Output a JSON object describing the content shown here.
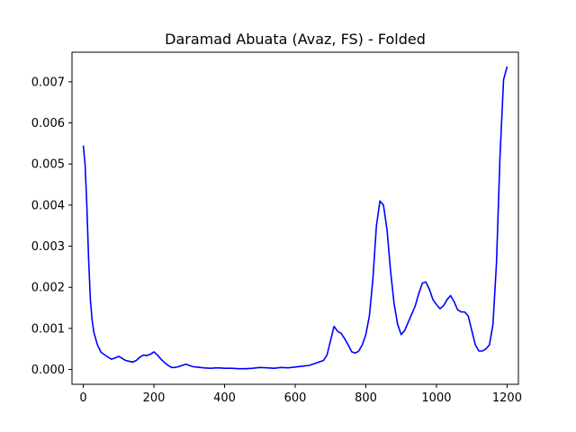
{
  "chart_data": {
    "type": "line",
    "title": "Daramad Abuata (Avaz, FS) - Folded",
    "xlabel": "",
    "ylabel": "",
    "xlim": [
      -32,
      1232
    ],
    "ylim": [
      -0.00036,
      0.00772
    ],
    "xticks": [
      0,
      200,
      400,
      600,
      800,
      1000,
      1200
    ],
    "yticks": [
      0.0,
      0.001,
      0.002,
      0.003,
      0.004,
      0.005,
      0.006,
      0.007
    ],
    "xtick_labels": [
      "0",
      "200",
      "400",
      "600",
      "800",
      "1000",
      "1200"
    ],
    "ytick_labels": [
      "0.000",
      "0.001",
      "0.002",
      "0.003",
      "0.004",
      "0.005",
      "0.006",
      "0.007"
    ],
    "grid": false,
    "series": [
      {
        "color": "#0000ff",
        "x": [
          0,
          5,
          10,
          15,
          20,
          25,
          30,
          40,
          50,
          60,
          70,
          80,
          90,
          100,
          110,
          120,
          130,
          140,
          150,
          160,
          170,
          180,
          190,
          200,
          210,
          220,
          230,
          240,
          250,
          260,
          270,
          280,
          290,
          300,
          310,
          320,
          340,
          360,
          380,
          400,
          420,
          440,
          460,
          480,
          500,
          520,
          540,
          560,
          580,
          600,
          620,
          640,
          660,
          680,
          690,
          700,
          710,
          720,
          730,
          740,
          750,
          760,
          770,
          780,
          790,
          800,
          810,
          820,
          830,
          840,
          850,
          860,
          870,
          880,
          890,
          900,
          910,
          920,
          930,
          940,
          950,
          960,
          970,
          980,
          990,
          1000,
          1010,
          1020,
          1030,
          1040,
          1050,
          1060,
          1070,
          1080,
          1090,
          1100,
          1110,
          1120,
          1130,
          1140,
          1150,
          1160,
          1170,
          1180,
          1190,
          1200
        ],
        "y": [
          0.00545,
          0.005,
          0.004,
          0.0027,
          0.0017,
          0.0012,
          0.0009,
          0.0006,
          0.00042,
          0.00036,
          0.0003,
          0.00025,
          0.00028,
          0.00032,
          0.00027,
          0.00022,
          0.0002,
          0.00018,
          0.00022,
          0.0003,
          0.00035,
          0.00034,
          0.00037,
          0.00043,
          0.00035,
          0.00025,
          0.00017,
          0.0001,
          5e-05,
          5e-05,
          7e-05,
          0.0001,
          0.00013,
          0.0001,
          7e-05,
          6e-05,
          4e-05,
          3e-05,
          4e-05,
          3e-05,
          3e-05,
          2e-05,
          2e-05,
          3e-05,
          5e-05,
          4e-05,
          3e-05,
          5e-05,
          4e-05,
          6e-05,
          8e-05,
          0.0001,
          0.00016,
          0.00022,
          0.00035,
          0.0007,
          0.00105,
          0.00093,
          0.00088,
          0.00075,
          0.0006,
          0.00043,
          0.0004,
          0.00045,
          0.0006,
          0.00085,
          0.0013,
          0.0022,
          0.0035,
          0.0041,
          0.004,
          0.0034,
          0.0024,
          0.0016,
          0.0011,
          0.00085,
          0.00095,
          0.00115,
          0.00135,
          0.00155,
          0.00185,
          0.0021,
          0.00213,
          0.00195,
          0.0017,
          0.00158,
          0.00148,
          0.00155,
          0.0017,
          0.0018,
          0.00165,
          0.00145,
          0.0014,
          0.0014,
          0.0013,
          0.00095,
          0.0006,
          0.00045,
          0.00045,
          0.0005,
          0.0006,
          0.0011,
          0.0026,
          0.0052,
          0.00705,
          0.00737
        ]
      }
    ]
  }
}
